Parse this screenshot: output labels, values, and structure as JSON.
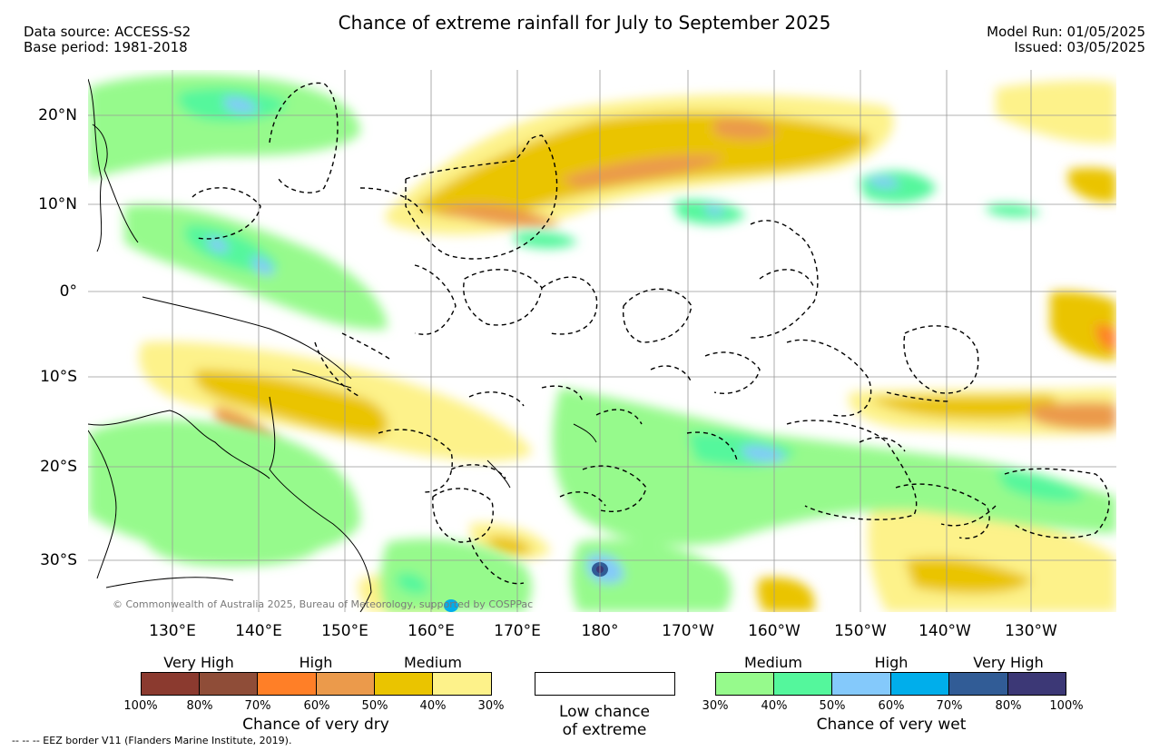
{
  "header": {
    "title": "Chance of extreme rainfall for July to September 2025",
    "data_source": "Data source: ACCESS-S2",
    "base_period": "Base period: 1981-2018",
    "model_run": "Model Run: 01/05/2025",
    "issued": "Issued: 03/05/2025"
  },
  "map": {
    "lat_labels": [
      "20°N",
      "10°N",
      "0°",
      "10°S",
      "20°S",
      "30°S"
    ],
    "lon_labels": [
      "130°E",
      "140°E",
      "150°E",
      "160°E",
      "170°E",
      "180°",
      "170°W",
      "160°W",
      "150°W",
      "140°W",
      "130°W"
    ],
    "copyright": "© Commonwealth of Australia 2025, Bureau of Meteorology, supported by COSPPac"
  },
  "legend": {
    "dry": {
      "headings": [
        "Very High",
        "High",
        "Medium"
      ],
      "colors": [
        "#8b3a2f",
        "#8f4d38",
        "#ff7f27",
        "#eb9a4b",
        "#eac400",
        "#fdf28a"
      ],
      "labels": [
        "100%",
        "80%",
        "70%",
        "60%",
        "50%",
        "40%",
        "30%"
      ],
      "title": "Chance of very dry"
    },
    "low": {
      "line1": "Low chance",
      "line2": "of extreme"
    },
    "wet": {
      "headings": [
        "Medium",
        "High",
        "Very High"
      ],
      "colors": [
        "#96fa8c",
        "#54f79c",
        "#84c9fb",
        "#00aeeb",
        "#315c96",
        "#3c3876"
      ],
      "labels": [
        "30%",
        "40%",
        "50%",
        "60%",
        "70%",
        "80%",
        "100%"
      ],
      "title": "Chance of very wet"
    }
  },
  "footer": {
    "eez_note": "--  --  -- EEZ border V11 (Flanders Marine Institute, 2019)."
  }
}
